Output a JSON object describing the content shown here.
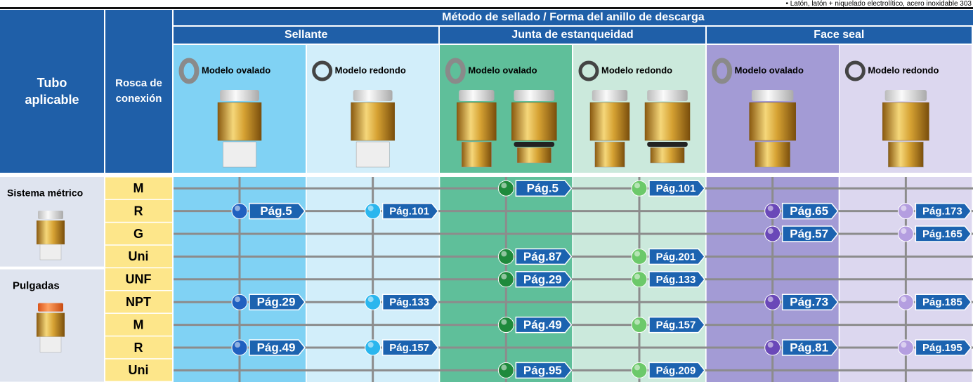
{
  "note": "• Latón, latón + niquelado electrolítico, acero inoxidable 303",
  "header": {
    "tube": "Tubo aplicable",
    "thread": "Rosca de conexión",
    "method": "Método de sellado / Forma del anillo de descarga",
    "groups": [
      "Sellante",
      "Junta de estanqueidad",
      "Face seal"
    ],
    "models": [
      "Modelo ovalado",
      "Modelo redondo",
      "Modelo ovalado",
      "Modelo redondo",
      "Modelo ovalado",
      "Modelo redondo"
    ]
  },
  "sections": [
    {
      "label": "Sistema métrico"
    },
    {
      "label": "Pulgadas"
    }
  ],
  "rows": [
    {
      "thread": "M",
      "cells": [
        null,
        null,
        "Pág.5",
        "Pág.101",
        null,
        null
      ]
    },
    {
      "thread": "R",
      "cells": [
        "Pág.5",
        "Pág.101",
        null,
        null,
        "Pág.65",
        "Pág.173"
      ]
    },
    {
      "thread": "G",
      "cells": [
        null,
        null,
        null,
        null,
        "Pág.57",
        "Pág.165"
      ]
    },
    {
      "thread": "Uni",
      "cells": [
        null,
        null,
        "Pág.87",
        "Pág.201",
        null,
        null
      ]
    },
    {
      "thread": "UNF",
      "cells": [
        null,
        null,
        "Pág.29",
        "Pág.133",
        null,
        null
      ]
    },
    {
      "thread": "NPT",
      "cells": [
        "Pág.29",
        "Pág.133",
        null,
        null,
        "Pág.73",
        "Pág.185"
      ]
    },
    {
      "thread": "M",
      "cells": [
        null,
        null,
        "Pág.49",
        "Pág.157",
        null,
        null
      ]
    },
    {
      "thread": "R",
      "cells": [
        "Pág.49",
        "Pág.157",
        null,
        null,
        "Pág.81",
        "Pág.195"
      ]
    },
    {
      "thread": "Uni",
      "cells": [
        null,
        null,
        "Pág.95",
        "Pág.209",
        null,
        null
      ]
    }
  ]
}
